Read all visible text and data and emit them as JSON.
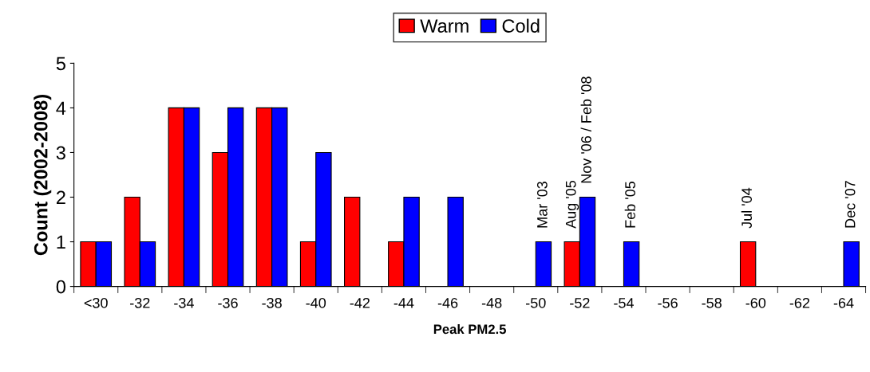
{
  "chart_data": {
    "type": "bar",
    "xlabel": "Peak PM2.5",
    "ylabel": "Count (2002-2008)",
    "categories": [
      "<30",
      "-32",
      "-34",
      "-36",
      "-38",
      "-40",
      "-42",
      "-44",
      "-46",
      "-48",
      "-50",
      "-52",
      "-54",
      "-56",
      "-58",
      "-60",
      "-62",
      "-64"
    ],
    "series": [
      {
        "name": "Warm",
        "color": "#ff0000",
        "values": [
          1,
          2,
          4,
          3,
          4,
          1,
          2,
          1,
          0,
          0,
          0,
          1,
          0,
          0,
          0,
          1,
          0,
          0
        ]
      },
      {
        "name": "Cold",
        "color": "#0000ff",
        "values": [
          1,
          1,
          4,
          4,
          4,
          3,
          0,
          2,
          2,
          0,
          1,
          2,
          1,
          0,
          0,
          0,
          0,
          1
        ]
      }
    ],
    "ylim": [
      0,
      5
    ],
    "yticks": [
      0,
      1,
      2,
      3,
      4,
      5
    ],
    "grid": false,
    "legend": "top",
    "annotations": [
      {
        "text": "Mar '03",
        "x": "-50",
        "y": 1
      },
      {
        "text": "Aug '05",
        "x": "-52",
        "y": 1
      },
      {
        "text": "Nov '06 / Feb '08",
        "x": "-52",
        "y": 2
      },
      {
        "text": "Feb '05",
        "x": "-54",
        "y": 1
      },
      {
        "text": "Jul '04",
        "x": "-60",
        "y": 1
      },
      {
        "text": "Dec '07",
        "x": "-64",
        "y": 1
      }
    ]
  }
}
